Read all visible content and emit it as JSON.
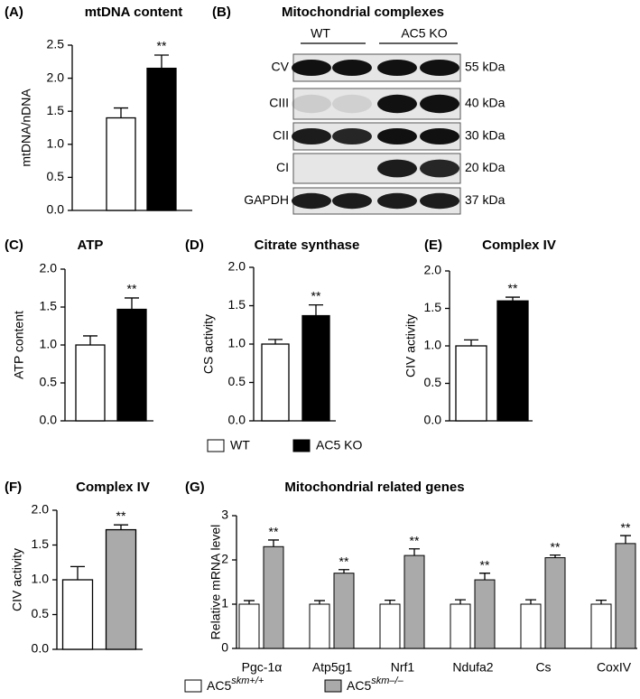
{
  "chart_data": [
    {
      "type": "bar",
      "panel_label": "(A)",
      "title": "mtDNA content",
      "ylabel": "mtDNA/nDNA",
      "values": [
        1.4,
        2.15
      ],
      "errors": [
        0.15,
        0.2
      ],
      "colors": [
        "#ffffff",
        "#000000"
      ],
      "significance": "**",
      "ylim": [
        0,
        2.5
      ],
      "yticks": [
        {
          "value": 0,
          "label": "0.0"
        },
        {
          "value": 0.5,
          "label": "0.5"
        },
        {
          "value": 1,
          "label": "1.0"
        },
        {
          "value": 1.5,
          "label": "1.5"
        },
        {
          "value": 2,
          "label": "2.0"
        },
        {
          "value": 2.5,
          "label": "2.5"
        }
      ]
    },
    {
      "type": "bar",
      "panel_label": "(C)",
      "title": "ATP",
      "ylabel": "ATP content",
      "values": [
        1.0,
        1.47
      ],
      "errors": [
        0.12,
        0.15
      ],
      "colors": [
        "#ffffff",
        "#000000"
      ],
      "significance": "**",
      "ylim": [
        0,
        2
      ],
      "yticks": [
        {
          "value": 0,
          "label": "0.0"
        },
        {
          "value": 0.5,
          "label": "0.5"
        },
        {
          "value": 1,
          "label": "1.0"
        },
        {
          "value": 1.5,
          "label": "1.5"
        },
        {
          "value": 2,
          "label": "2.0"
        }
      ]
    },
    {
      "type": "bar",
      "panel_label": "(D)",
      "title": "Citrate synthase",
      "ylabel": "CS activity",
      "values": [
        1.0,
        1.37
      ],
      "errors": [
        0.06,
        0.14
      ],
      "colors": [
        "#ffffff",
        "#000000"
      ],
      "significance": "**",
      "ylim": [
        0,
        2
      ],
      "yticks": [
        {
          "value": 0,
          "label": "0.0"
        },
        {
          "value": 0.5,
          "label": "0.5"
        },
        {
          "value": 1,
          "label": "1.0"
        },
        {
          "value": 1.5,
          "label": "1.5"
        },
        {
          "value": 2,
          "label": "2.0"
        }
      ]
    },
    {
      "type": "bar",
      "panel_label": "(E)",
      "title": "Complex IV",
      "ylabel": "CIV activity",
      "values": [
        1.0,
        1.6
      ],
      "errors": [
        0.08,
        0.05
      ],
      "colors": [
        "#ffffff",
        "#000000"
      ],
      "significance": "**",
      "ylim": [
        0,
        2
      ],
      "yticks": [
        {
          "value": 0,
          "label": "0.0"
        },
        {
          "value": 0.5,
          "label": "0.5"
        },
        {
          "value": 1,
          "label": "1.0"
        },
        {
          "value": 1.5,
          "label": "1.5"
        },
        {
          "value": 2,
          "label": "2.0"
        }
      ]
    },
    {
      "type": "bar",
      "panel_label": "(F)",
      "title": "Complex IV",
      "ylabel": "CIV activity",
      "values": [
        1.0,
        1.72
      ],
      "errors": [
        0.19,
        0.07
      ],
      "colors": [
        "#ffffff",
        "#aaaaaa"
      ],
      "significance": "**",
      "ylim": [
        0,
        2
      ],
      "yticks": [
        {
          "value": 0,
          "label": "0.0"
        },
        {
          "value": 0.5,
          "label": "0.5"
        },
        {
          "value": 1,
          "label": "1.0"
        },
        {
          "value": 1.5,
          "label": "1.5"
        },
        {
          "value": 2,
          "label": "2.0"
        }
      ]
    },
    {
      "type": "bar",
      "panel_label": "(G)",
      "title": "Mitochondrial related genes",
      "ylabel": "Relative mRNA level",
      "categories": [
        "Pgc-1α",
        "Atp5g1",
        "Nrf1",
        "Ndufa2",
        "Cs",
        "CoxIV"
      ],
      "series": [
        {
          "name": "AC5",
          "superscript": "skm+/+",
          "color": "#ffffff",
          "values": [
            1,
            1,
            1,
            1,
            1,
            1
          ],
          "errors": [
            0.08,
            0.08,
            0.09,
            0.1,
            0.1,
            0.09
          ]
        },
        {
          "name": "AC5",
          "superscript": "skm–/–",
          "color": "#aaaaaa",
          "values": [
            2.3,
            1.7,
            2.1,
            1.55,
            2.05,
            2.37
          ],
          "errors": [
            0.15,
            0.08,
            0.15,
            0.15,
            0.06,
            0.18
          ],
          "significance": [
            "**",
            "**",
            "**",
            "**",
            "**",
            "**"
          ]
        }
      ],
      "ylim": [
        0,
        3
      ],
      "yticks": [
        0,
        1,
        2,
        3
      ]
    }
  ],
  "legend": [
    {
      "name": "WT",
      "color": "#ffffff"
    },
    {
      "name": "AC5 KO",
      "color": "#000000"
    }
  ],
  "blot": {
    "panel_label": "(B)",
    "title": "Mitochondrial complexes",
    "groups": [
      "WT",
      "AC5 KO"
    ],
    "rows": [
      {
        "label": "CV",
        "size": "55 kDa"
      },
      {
        "label": "CIII",
        "size": "40 kDa"
      },
      {
        "label": "CII",
        "size": "30 kDa"
      },
      {
        "label": "CI",
        "size": "20 kDa"
      },
      {
        "label": "GAPDH",
        "size": "37 kDa"
      }
    ]
  }
}
